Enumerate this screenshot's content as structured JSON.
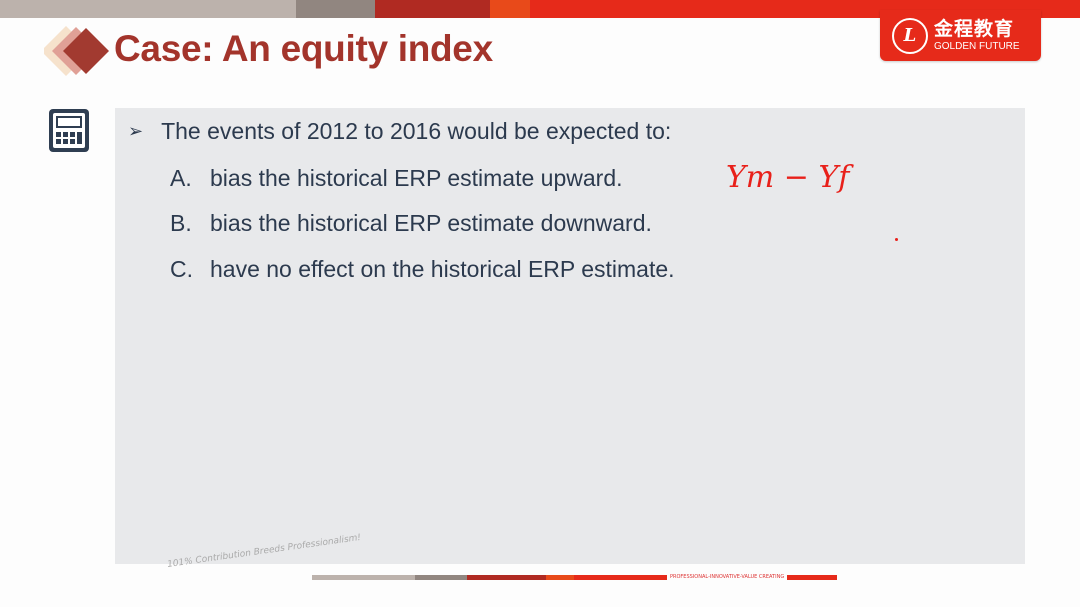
{
  "colors": {
    "title": "#a3342b",
    "accent_red": "#e62a1a",
    "dark_red": "#b02a22",
    "orange": "#e84a1a",
    "gray": "#918680",
    "light_gray": "#bcb2ac",
    "text": "#2c3a4e",
    "panel": "#e8e9eb",
    "handwriting": "#e8201a"
  },
  "logo": {
    "cn": "金程教育",
    "en": "GOLDEN FUTURE",
    "seal_letter": "L"
  },
  "slide": {
    "title": "Case: An equity index",
    "icon": "calculator-icon",
    "question": "The events of 2012 to 2016 would be expected to:",
    "options": [
      {
        "letter": "A.",
        "text": "bias the historical ERP estimate upward."
      },
      {
        "letter": "B.",
        "text": "bias the historical ERP estimate downward."
      },
      {
        "letter": "C.",
        "text": "have no effect on the historical ERP estimate."
      }
    ],
    "annotation": "Ym − Yf"
  },
  "footer": {
    "slogan": "101% Contribution Breeds Professionalism!",
    "tagline": "PROFESSIONAL-INNOVATIVE-VALUE CREATING"
  }
}
